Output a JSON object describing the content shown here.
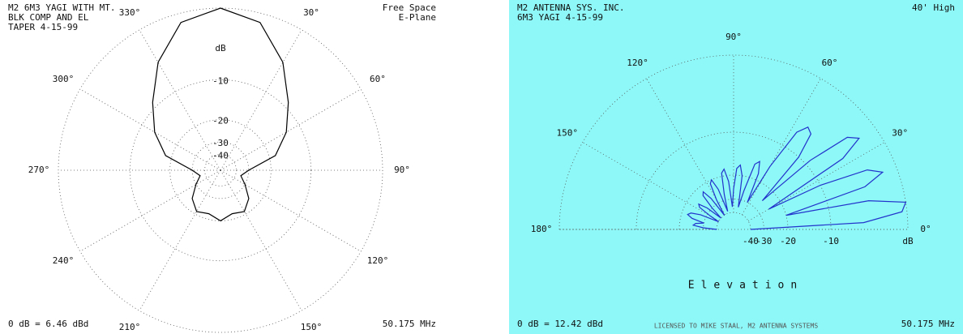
{
  "chart_data": [
    {
      "type": "polar",
      "title_lines": [
        "M2 6M3 YAGI WITH MT.",
        "BLK COMP AND EL",
        "TAPER 4-15-99"
      ],
      "subtitle_lines": [
        "Free Space",
        "E-Plane"
      ],
      "footer_left": "0 dB = 6.46 dBd",
      "footer_right": "50.175 MHz",
      "zero_direction": "top",
      "rotation": "clockwise",
      "span": 360,
      "radial_scale": "arrl-log",
      "background": "#ffffff",
      "grid": true,
      "ylim": [
        -40,
        0
      ],
      "yticks": [
        {
          "value": 0,
          "label": "dB"
        },
        -10,
        -20,
        -30,
        -40
      ],
      "xticks": [
        {
          "value": 30,
          "label": "30°"
        },
        {
          "value": 60,
          "label": "60°"
        },
        {
          "value": 90,
          "label": "90°"
        },
        {
          "value": 120,
          "label": "120°"
        },
        {
          "value": 150,
          "label": "150°"
        },
        {
          "value": 210,
          "label": "210°"
        },
        {
          "value": 240,
          "label": "240°"
        },
        {
          "value": 270,
          "label": "270°"
        },
        {
          "value": 300,
          "label": "300°"
        },
        {
          "value": 330,
          "label": "330°"
        }
      ],
      "x": [
        0,
        15,
        30,
        45,
        60,
        75,
        90,
        105,
        120,
        135,
        150,
        165,
        180,
        195,
        210,
        225,
        240,
        255,
        270,
        285,
        300,
        315,
        330,
        345
      ],
      "series": [
        {
          "color": "#000000",
          "values": [
            0,
            -1,
            -4.5,
            -9,
            -13,
            -18,
            -30,
            -35,
            -30,
            -24,
            -21,
            -22,
            -20,
            -22,
            -21,
            -24,
            -30,
            -35,
            -30,
            -18,
            -13,
            -9,
            -4.5,
            -1
          ]
        }
      ]
    },
    {
      "type": "polar",
      "title_lines": [
        "M2 ANTENNA SYS. INC.",
        "6M3 YAGI    4-15-99"
      ],
      "subtitle_lines": [
        "40' High"
      ],
      "x_label": "Elevation",
      "footer_left": "0 dB = 12.42 dBd",
      "footer_center": "LICENSED TO MIKE STAAL, M2 ANTENNA SYSTEMS",
      "footer_right": "50.175 MHz",
      "zero_direction": "right",
      "rotation": "counterclockwise",
      "span": 180,
      "radial_scale": "arrl-log",
      "background": "#8ef7f7",
      "grid": true,
      "ylim": [
        -40,
        0
      ],
      "yticks": [
        {
          "value": 0,
          "label": "dB"
        },
        -10,
        -20,
        -30,
        -40
      ],
      "xticks": [
        {
          "value": 0,
          "label": "0°"
        },
        {
          "value": 30,
          "label": "30°"
        },
        {
          "value": 60,
          "label": "60°"
        },
        {
          "value": 90,
          "label": "90°"
        },
        {
          "value": 120,
          "label": "120°"
        },
        {
          "value": 150,
          "label": "150°"
        },
        {
          "value": 180,
          "label": "180°"
        }
      ],
      "x": [
        0,
        3,
        6,
        9,
        12,
        15,
        18,
        21,
        24,
        27,
        30,
        33,
        36,
        39,
        42,
        45,
        48,
        51,
        54,
        57,
        60,
        63,
        66,
        69,
        72,
        75,
        78,
        81,
        84,
        87,
        90,
        93,
        96,
        99,
        102,
        105,
        108,
        111,
        114,
        117,
        120,
        123,
        126,
        129,
        132,
        135,
        138,
        141,
        144,
        147,
        150,
        153,
        156,
        159,
        162,
        165,
        168,
        171,
        174,
        177,
        180
      ],
      "series": [
        {
          "color": "#2233cc",
          "values": [
            -40,
            -5,
            -0.5,
            0,
            -4,
            -20,
            -4,
            -1.5,
            -3,
            -10,
            -25,
            -5,
            -2,
            -3,
            -9,
            -25,
            -10,
            -6,
            -5.5,
            -7,
            -15,
            -30,
            -18,
            -15,
            -16,
            -25,
            -35,
            -20,
            -17,
            -18,
            -25,
            -35,
            -22,
            -18,
            -19,
            -27,
            -38,
            -24,
            -20,
            -21,
            -28,
            -40,
            -26,
            -22,
            -23,
            -30,
            -40,
            -28,
            -24,
            -25,
            -32,
            -40,
            -27,
            -23,
            -22,
            -24,
            -30,
            -26,
            -25,
            -30,
            -40
          ]
        }
      ]
    }
  ]
}
